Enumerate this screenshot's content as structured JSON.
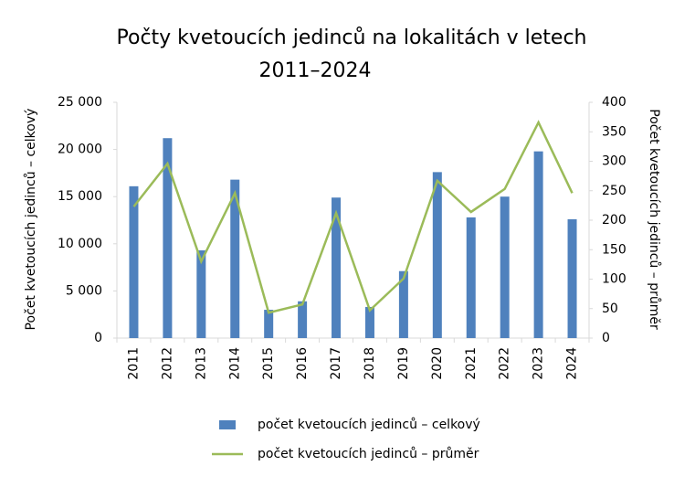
{
  "chart_data": {
    "type": "bar-line",
    "title": [
      "Počty kvetoucích jedinců na lokalitách v letech",
      "2011–2024"
    ],
    "y_label": "Počet kvetoucích jedinců – celkový",
    "y2_label": "Počet kvetoucích jedinců – průměr",
    "categories": [
      "2011",
      "2012",
      "2013",
      "2014",
      "2015",
      "2016",
      "2017",
      "2018",
      "2019",
      "2020",
      "2021",
      "2022",
      "2023",
      "2024"
    ],
    "series": [
      {
        "name": "počet kvetoucích jedinců – celkový",
        "type": "bar",
        "color": "#4f81bd",
        "values": [
          16100,
          21200,
          9300,
          16800,
          3000,
          3900,
          14900,
          3300,
          7100,
          17600,
          12800,
          15000,
          19800,
          12600
        ]
      },
      {
        "name": "počet kvetoucích jedinců – průměr",
        "type": "line",
        "axis": "y2",
        "color": "#9bbb59",
        "values": [
          223,
          296,
          130,
          246,
          43,
          57,
          212,
          47,
          101,
          267,
          214,
          253,
          366,
          246
        ]
      }
    ],
    "ylim": [
      0,
      25000
    ],
    "yticks": [
      0,
      {
        "value": 5000,
        "label": "5 000"
      },
      {
        "value": 10000,
        "label": "10 000"
      },
      {
        "value": 15000,
        "label": "15 000"
      },
      {
        "value": 20000,
        "label": "20 000"
      },
      {
        "value": 25000,
        "label": "25 000"
      }
    ],
    "y2lim": [
      0,
      400
    ],
    "y2ticks": [
      0,
      50,
      100,
      150,
      200,
      250,
      300,
      350,
      400
    ],
    "grid": false,
    "legend": "bottom"
  }
}
